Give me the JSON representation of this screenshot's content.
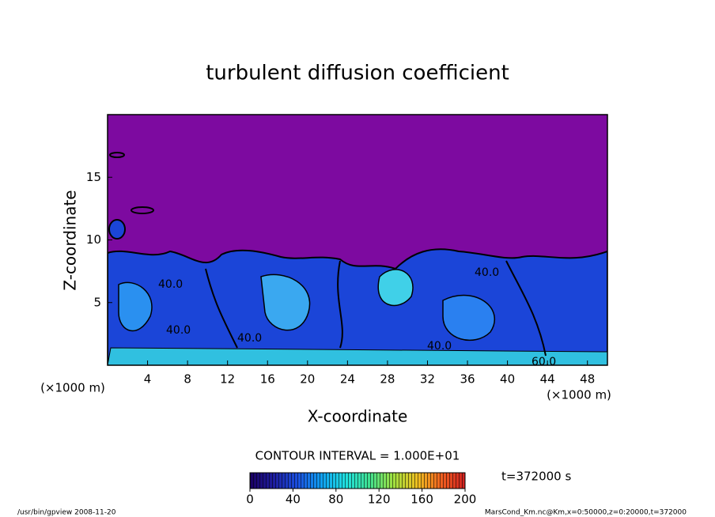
{
  "chart_data": {
    "type": "contour",
    "title": "turbulent diffusion coefficient",
    "xlabel": "X-coordinate",
    "ylabel": "Z-coordinate",
    "xunit": "(×1000 m)",
    "yunit": "(×1000 m)",
    "xlim": [
      0,
      50
    ],
    "xticks": [
      4,
      8,
      12,
      16,
      20,
      24,
      28,
      32,
      36,
      40,
      44,
      48
    ],
    "ylim": [
      0,
      20
    ],
    "yticks": [
      5,
      10,
      15
    ],
    "contour_interval": "CONTOUR INTERVAL = 1.000E+01",
    "contour_labels": [
      "40.0",
      "40.0",
      "40.0",
      "40.0",
      "40.0",
      "60.0"
    ],
    "time_label": "t=372000 s",
    "colorbar": {
      "clim": [
        0,
        200
      ],
      "ticks": [
        0,
        40,
        80,
        120,
        160,
        200
      ],
      "colormap": [
        "#1a0060",
        "#1e1ea0",
        "#1a50e0",
        "#10a0f0",
        "#20e0e0",
        "#40e090",
        "#a0e040",
        "#f0c020",
        "#f06020",
        "#d02020"
      ]
    },
    "footer_left": "/usr/bin/gpview   2008-11-20",
    "footer_right": "MarsCond_Km.nc@Km,x=0:50000,z=0:20000,t=372000"
  }
}
